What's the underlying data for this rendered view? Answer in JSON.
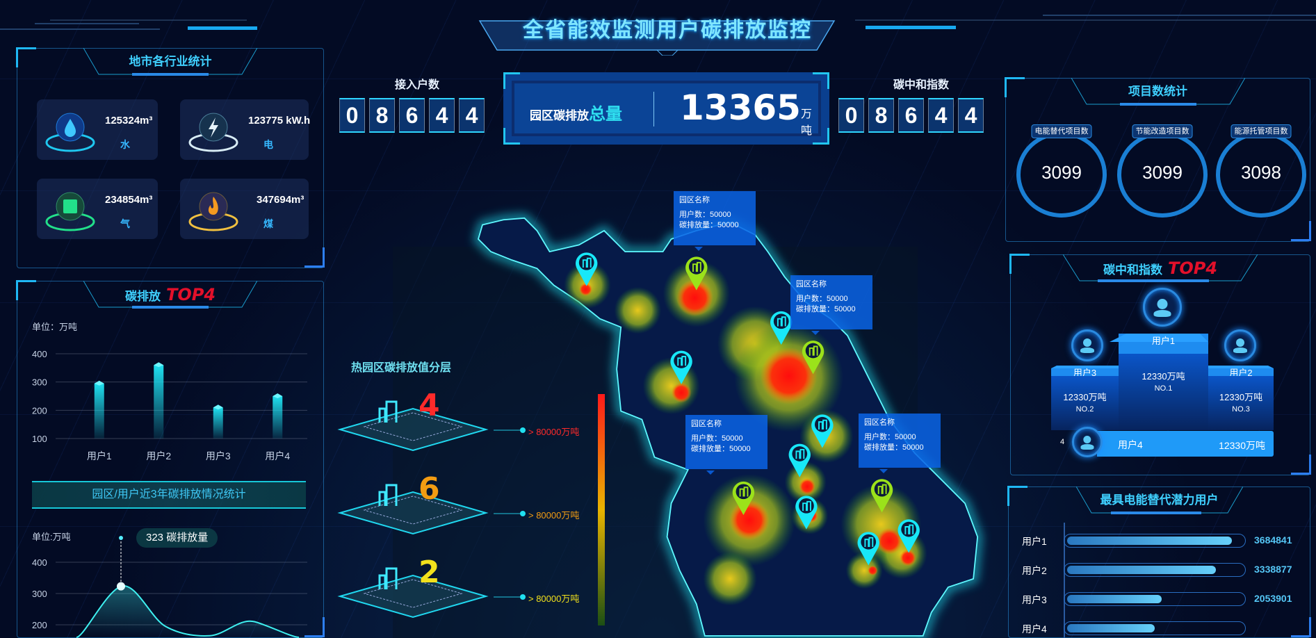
{
  "header": {
    "title": "全省能效监测用户碳排放监控"
  },
  "industry_panel": {
    "title": "地市各行业统计",
    "items": [
      {
        "value": "125324m³",
        "label": "水",
        "icon": "water-drop-icon",
        "color": "#1fc8f0"
      },
      {
        "value": "123775 kW.h",
        "label": "电",
        "icon": "lightning-icon",
        "color": "#d8ecf5"
      },
      {
        "value": "234854m³",
        "label": "气",
        "icon": "gas-icon",
        "color": "#22e08a"
      },
      {
        "value": "347694m³",
        "label": "煤",
        "icon": "flame-icon",
        "color": "#f0c040"
      }
    ]
  },
  "top4_panel": {
    "title": "碳排放",
    "title_highlight": "TOP4",
    "unit": "单位：万吨",
    "trend_banner": "园区/用户近3年碳排放情况统计",
    "trend_unit": "单位:万吨",
    "tooltip_value": "323",
    "tooltip_label": "碳排放量"
  },
  "access": {
    "label": "接入户数",
    "digits": [
      "0",
      "8",
      "6",
      "4",
      "4"
    ]
  },
  "total": {
    "label": "园区碳排放",
    "label_highlight": "总量",
    "value": "13365",
    "unit": "万吨"
  },
  "neutral": {
    "label": "碳中和指数",
    "digits": [
      "0",
      "8",
      "6",
      "4",
      "4"
    ]
  },
  "map": {
    "legend_title": "热园区碳排放值分层",
    "legend": [
      {
        "count": "4",
        "text": "> 80000万吨",
        "color": "#ff2a2a"
      },
      {
        "count": "6",
        "text": "> 80000万吨",
        "color": "#f39c12"
      },
      {
        "count": "2",
        "text": "> 80000万吨",
        "color": "#f2e11c"
      }
    ],
    "colorbar": [
      "#ff1a1a",
      "#e8b400",
      "#1c4f14"
    ],
    "callouts": [
      {
        "name": "园区名称",
        "users": "用户数：50000",
        "emission": "碳排放量：50000"
      },
      {
        "name": "园区名称",
        "users": "用户数：50000",
        "emission": "碳排放量：50000"
      },
      {
        "name": "园区名称",
        "users": "用户数：50000",
        "emission": "碳排放量：50000"
      },
      {
        "name": "园区名称",
        "users": "用户数：50000",
        "emission": "碳排放量：50000"
      }
    ]
  },
  "project_panel": {
    "title": "项目数统计",
    "items": [
      {
        "label": "电能替代项目数",
        "value": "3099"
      },
      {
        "label": "节能改造项目数",
        "value": "3099"
      },
      {
        "label": "能源托管项目数",
        "value": "3098"
      }
    ]
  },
  "neutral_top4": {
    "title": "碳中和指数",
    "title_highlight": "TOP4",
    "first": {
      "name": "用户1",
      "value": "12330万吨",
      "rank": "NO.1"
    },
    "second": {
      "name": "用户3",
      "value": "12330万吨",
      "rank": "NO.2"
    },
    "third": {
      "name": "用户2",
      "value": "12330万吨",
      "rank": "NO.3"
    },
    "fourth": {
      "rank": "4",
      "name": "用户4",
      "value": "12330万吨"
    }
  },
  "potential_panel": {
    "title": "最具电能替代潜力用户",
    "rows": [
      {
        "name": "用户1",
        "value": "3684841",
        "pct": 94
      },
      {
        "name": "用户2",
        "value": "3338877",
        "pct": 85
      },
      {
        "name": "用户3",
        "value": "2053901",
        "pct": 54
      },
      {
        "name": "用户4",
        "value": "",
        "pct": 50
      }
    ]
  },
  "chart_data": [
    {
      "type": "bar",
      "categories": [
        "用户1",
        "用户2",
        "用户3",
        "用户4"
      ],
      "values": [
        295,
        360,
        210,
        250
      ],
      "ylabel": "单位：万吨",
      "yticks": [
        100,
        200,
        300,
        400
      ],
      "ylim": [
        100,
        400
      ],
      "grid": true,
      "color": "#1fe0f0"
    },
    {
      "type": "area",
      "values": [
        100,
        323,
        195,
        165,
        210,
        90
      ],
      "ylabel": "单位:万吨",
      "yticks": [
        200,
        300,
        400
      ],
      "ylim": [
        0,
        400
      ],
      "grid": true,
      "color": "#3ff0f0",
      "tooltip": {
        "value": 323,
        "label": "碳排放量"
      }
    }
  ]
}
